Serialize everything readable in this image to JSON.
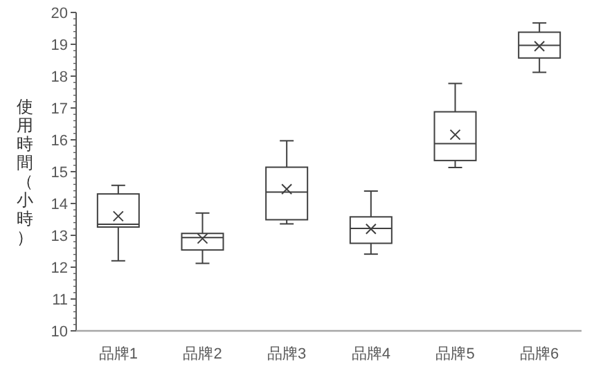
{
  "chart_data": {
    "type": "box",
    "ylabel": "使用時間（小時）",
    "categories": [
      "品牌1",
      "品牌2",
      "品牌3",
      "品牌4",
      "品牌5",
      "品牌6"
    ],
    "boxes": [
      {
        "low": 12.2,
        "q1": 13.26,
        "median": 13.35,
        "q3": 14.3,
        "high": 14.57,
        "mean": 13.6
      },
      {
        "low": 12.12,
        "q1": 12.54,
        "median": 12.93,
        "q3": 13.06,
        "high": 13.7,
        "mean": 12.9
      },
      {
        "low": 13.36,
        "q1": 13.49,
        "median": 14.36,
        "q3": 15.14,
        "high": 15.97,
        "mean": 14.45
      },
      {
        "low": 12.41,
        "q1": 12.75,
        "median": 13.22,
        "q3": 13.58,
        "high": 14.39,
        "mean": 13.2
      },
      {
        "low": 15.13,
        "q1": 15.35,
        "median": 15.88,
        "q3": 16.88,
        "high": 17.77,
        "mean": 16.16
      },
      {
        "low": 18.12,
        "q1": 18.57,
        "median": 18.97,
        "q3": 19.38,
        "high": 19.67,
        "mean": 18.94
      }
    ],
    "color": "#404040",
    "ylim": [
      10,
      20
    ],
    "yticks": [
      10,
      11,
      12,
      13,
      14,
      15,
      16,
      17,
      18,
      19,
      20
    ],
    "grid": false
  }
}
